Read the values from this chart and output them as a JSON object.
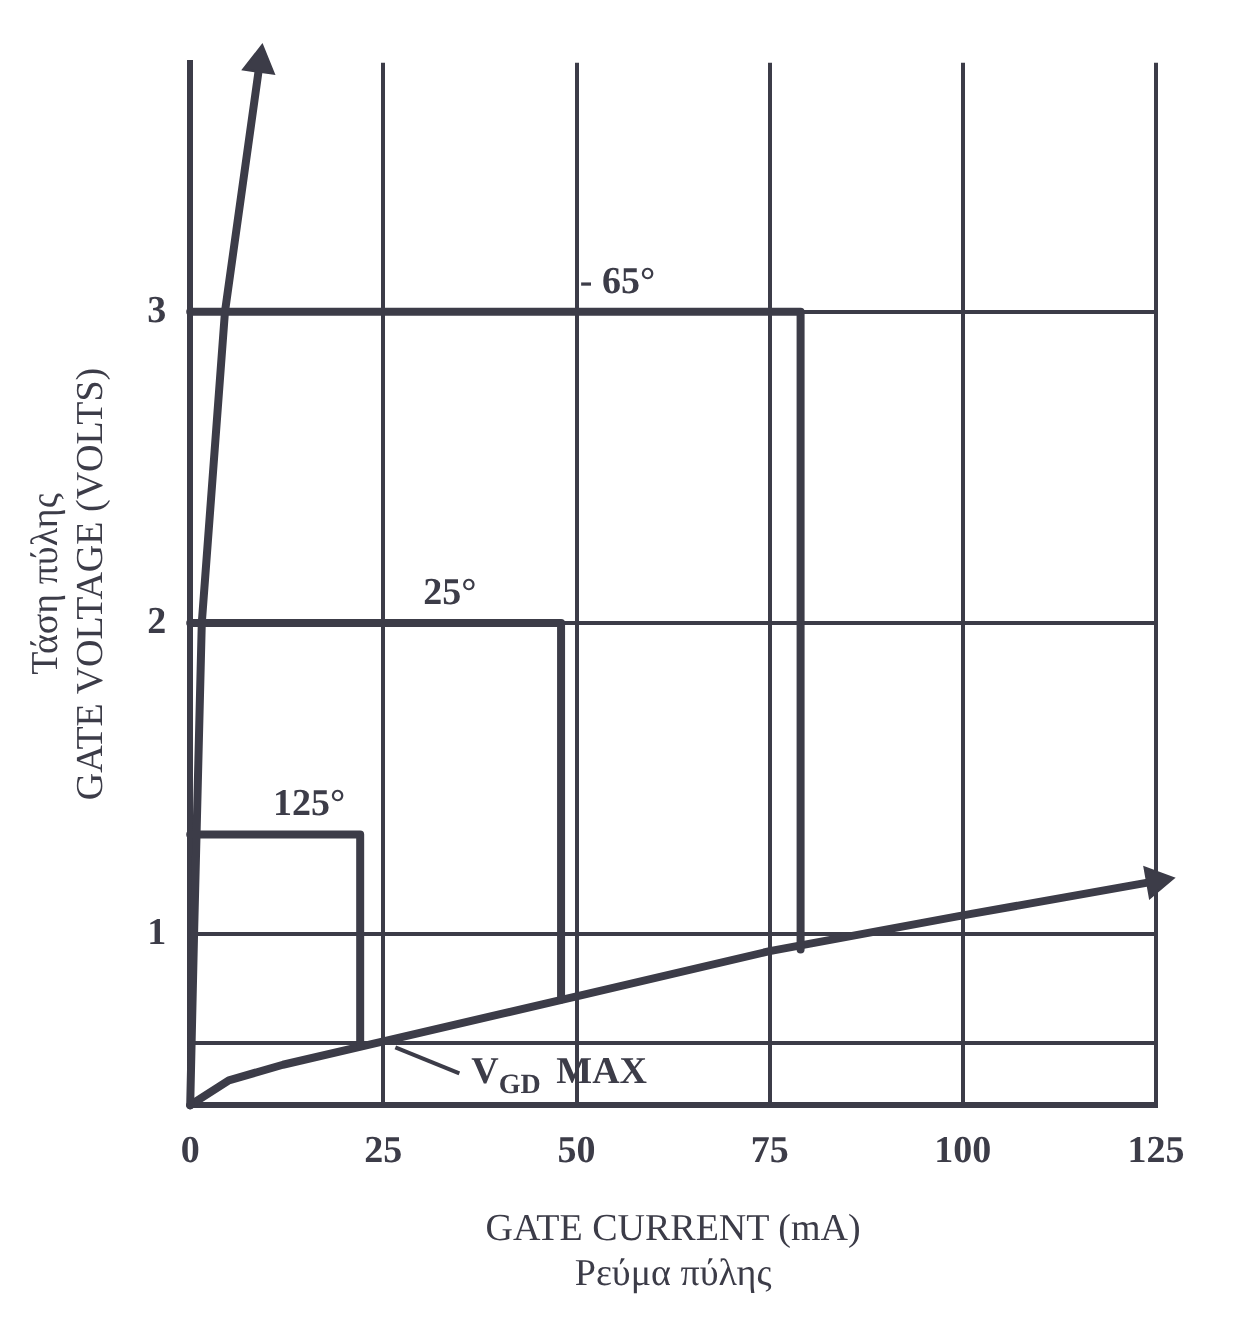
{
  "chart_data": {
    "type": "line",
    "xlabel": "GATE CURRENT (mA)\nΡεύμα πύλης",
    "ylabel": "Τάση πύλης\nGATE VOLTAGE (VOLTS)",
    "xlim": [
      0,
      125
    ],
    "xticks": [
      0,
      25,
      50,
      75,
      100,
      125
    ],
    "ylim": [
      0.45,
      3.8
    ],
    "yticks": [
      {
        "value": 0.65,
        "label": null
      },
      1,
      2,
      3
    ],
    "grid": true,
    "legend": false,
    "marker": "none",
    "line_style": "solid",
    "series": [
      {
        "name": "- 65°",
        "color": "#3c3c48",
        "x": [
          0,
          79,
          79
        ],
        "values": [
          3,
          3,
          0.95
        ]
      },
      {
        "name": "25°",
        "color": "#3c3c48",
        "x": [
          0,
          48,
          48
        ],
        "values": [
          2,
          2,
          0.79
        ]
      },
      {
        "name": "125°",
        "color": "#3c3c48",
        "x": [
          0,
          22,
          22
        ],
        "values": [
          1.32,
          1.32,
          0.64
        ]
      },
      {
        "color": "#3c3c48",
        "x": [
          0,
          0.5,
          1.5,
          4.5,
          9
        ],
        "values": [
          0.45,
          1,
          2,
          3,
          3.8
        ]
      },
      {
        "color": "#3c3c48",
        "x": [
          0,
          5,
          12,
          25,
          50,
          75,
          100,
          125
        ],
        "values": [
          0.45,
          0.53,
          0.58,
          0.655,
          0.8,
          0.945,
          1.06,
          1.17
        ]
      }
    ],
    "annotations": [
      {
        "text": "V$_{GD}$ MAX",
        "x": 25,
        "y": 0.655
      }
    ]
  }
}
